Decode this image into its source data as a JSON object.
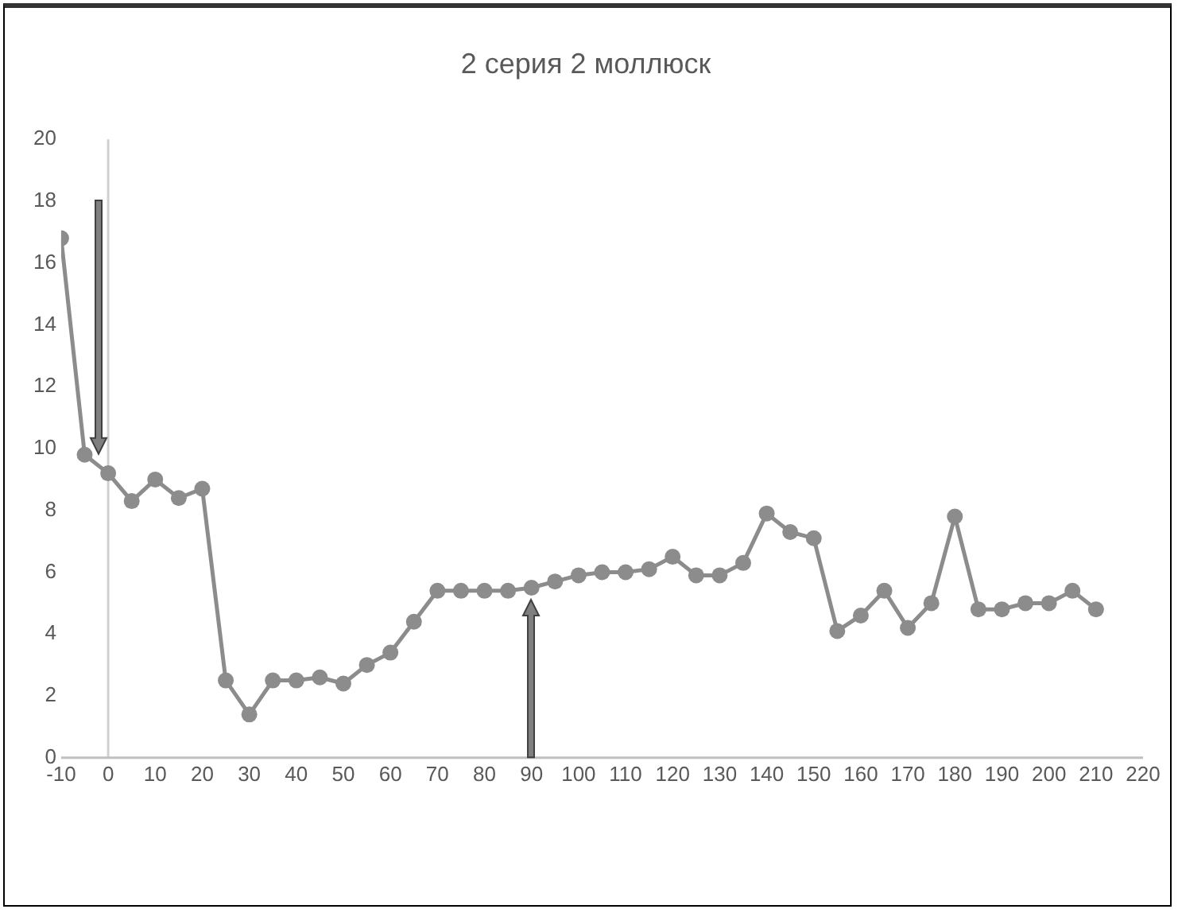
{
  "chart_data": {
    "type": "line",
    "title": "2 серия 2 моллюск",
    "x": [
      -10,
      -5,
      0,
      5,
      10,
      15,
      20,
      25,
      30,
      35,
      40,
      45,
      50,
      55,
      60,
      65,
      70,
      75,
      80,
      85,
      90,
      95,
      100,
      105,
      110,
      115,
      120,
      125,
      130,
      135,
      140,
      145,
      150,
      155,
      160,
      165,
      170,
      175,
      180,
      185,
      190,
      195,
      200,
      205,
      210
    ],
    "series": [
      {
        "color": "#8c8c8c",
        "values": [
          16.8,
          9.8,
          9.2,
          8.3,
          9.0,
          8.4,
          8.7,
          2.5,
          1.4,
          2.5,
          2.5,
          2.6,
          2.4,
          3.0,
          3.4,
          4.4,
          5.4,
          5.4,
          5.4,
          5.4,
          5.5,
          5.7,
          5.9,
          6.0,
          6.0,
          6.1,
          6.5,
          5.9,
          5.9,
          6.3,
          7.9,
          7.3,
          7.1,
          4.1,
          4.6,
          5.4,
          4.2,
          5.0,
          7.8,
          4.8,
          4.8,
          5.0,
          5.0,
          5.4,
          4.8
        ]
      }
    ],
    "xlim": [
      -10,
      220
    ],
    "xticks": [
      -10,
      0,
      10,
      20,
      30,
      40,
      50,
      60,
      70,
      80,
      90,
      100,
      110,
      120,
      130,
      140,
      150,
      160,
      170,
      180,
      190,
      200,
      210,
      220
    ],
    "ylim": [
      0,
      20
    ],
    "yticks": [
      0,
      2,
      4,
      6,
      8,
      10,
      12,
      14,
      16,
      18,
      20
    ],
    "grid": false,
    "legend": false,
    "marker": "circle",
    "line_style": "solid"
  }
}
